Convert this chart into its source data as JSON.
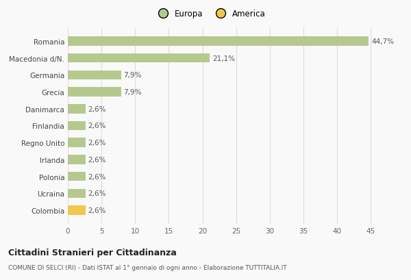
{
  "categories": [
    "Colombia",
    "Ucraina",
    "Polonia",
    "Irlanda",
    "Regno Unito",
    "Finlandia",
    "Danimarca",
    "Grecia",
    "Germania",
    "Macedonia d/N.",
    "Romania"
  ],
  "values": [
    2.6,
    2.6,
    2.6,
    2.6,
    2.6,
    2.6,
    2.6,
    7.9,
    7.9,
    21.1,
    44.7
  ],
  "colors": [
    "#f0c850",
    "#b5c98e",
    "#b5c98e",
    "#b5c98e",
    "#b5c98e",
    "#b5c98e",
    "#b5c98e",
    "#b5c98e",
    "#b5c98e",
    "#b5c98e",
    "#b5c98e"
  ],
  "labels": [
    "2,6%",
    "2,6%",
    "2,6%",
    "2,6%",
    "2,6%",
    "2,6%",
    "2,6%",
    "7,9%",
    "7,9%",
    "21,1%",
    "44,7%"
  ],
  "europa_color": "#b5c98e",
  "america_color": "#f0c850",
  "title_main": "Cittadini Stranieri per Cittadinanza",
  "title_sub": "COMUNE DI SELCI (RI) - Dati ISTAT al 1° gennaio di ogni anno - Elaborazione TUTTITALIA.IT",
  "xlim": [
    0,
    47
  ],
  "xticks": [
    0,
    5,
    10,
    15,
    20,
    25,
    30,
    35,
    40,
    45
  ],
  "background_color": "#f9f9f9",
  "bar_height": 0.55,
  "legend_europa": "Europa",
  "legend_america": "America"
}
